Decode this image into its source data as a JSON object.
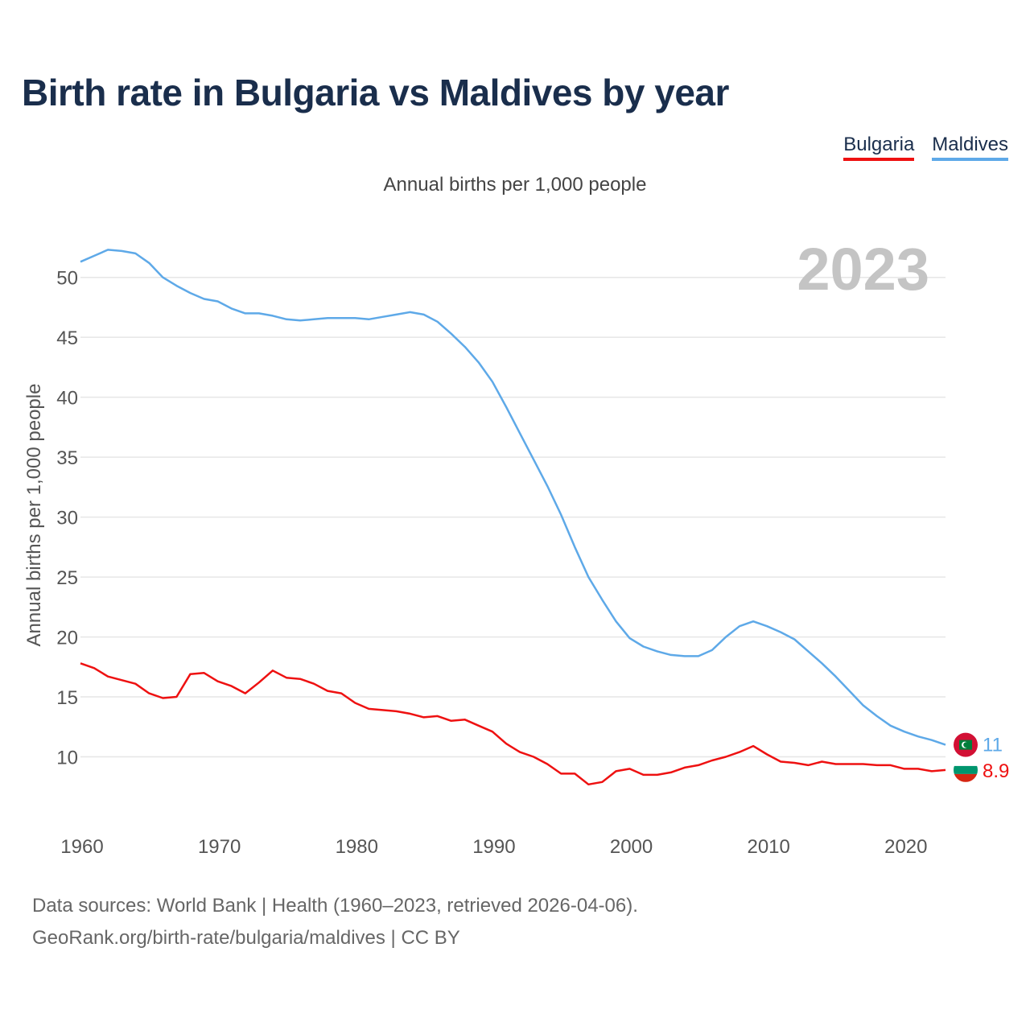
{
  "title": "Birth rate in Bulgaria vs Maldives by year",
  "subtitle": "Annual births per 1,000 people",
  "legend": {
    "bulgaria": "Bulgaria",
    "maldives": "Maldives"
  },
  "year_watermark": "2023",
  "footer": {
    "line1": "Data sources: World Bank | Health (1960–2023, retrieved 2026-04-06).",
    "line2": "GeoRank.org/birth-rate/bulgaria/maldives | CC BY"
  },
  "colors": {
    "bulgaria": "#ee1111",
    "maldives": "#5ea9e8",
    "grid": "#e6e6e6",
    "axis_text": "#555555"
  },
  "chart_data": {
    "type": "line",
    "title": "Birth rate in Bulgaria vs Maldives by year",
    "ylabel": "Annual births per 1,000 people",
    "xlabel": "",
    "xlim": [
      1960,
      2023
    ],
    "ylim": [
      5,
      53
    ],
    "x_ticks": [
      1960,
      1970,
      1980,
      1990,
      2000,
      2010,
      2020
    ],
    "y_ticks": [
      10,
      15,
      20,
      25,
      30,
      35,
      40,
      45,
      50
    ],
    "x": [
      1960,
      1961,
      1962,
      1963,
      1964,
      1965,
      1966,
      1967,
      1968,
      1969,
      1970,
      1971,
      1972,
      1973,
      1974,
      1975,
      1976,
      1977,
      1978,
      1979,
      1980,
      1981,
      1982,
      1983,
      1984,
      1985,
      1986,
      1987,
      1988,
      1989,
      1990,
      1991,
      1992,
      1993,
      1994,
      1995,
      1996,
      1997,
      1998,
      1999,
      2000,
      2001,
      2002,
      2003,
      2004,
      2005,
      2006,
      2007,
      2008,
      2009,
      2010,
      2011,
      2012,
      2013,
      2014,
      2015,
      2016,
      2017,
      2018,
      2019,
      2020,
      2021,
      2022,
      2023
    ],
    "series": [
      {
        "name": "Maldives",
        "end_label": "11",
        "values": [
          51.3,
          51.8,
          52.3,
          52.2,
          52.0,
          51.2,
          50.0,
          49.3,
          48.7,
          48.2,
          48.0,
          47.4,
          47.0,
          47.0,
          46.8,
          46.5,
          46.4,
          46.5,
          46.6,
          46.6,
          46.6,
          46.5,
          46.7,
          46.9,
          47.1,
          46.9,
          46.3,
          45.3,
          44.2,
          42.9,
          41.3,
          39.2,
          37.0,
          34.8,
          32.6,
          30.2,
          27.5,
          25.0,
          23.1,
          21.3,
          19.9,
          19.2,
          18.8,
          18.5,
          18.4,
          18.4,
          18.9,
          20.0,
          20.9,
          21.3,
          20.9,
          20.4,
          19.8,
          18.8,
          17.8,
          16.7,
          15.5,
          14.3,
          13.4,
          12.6,
          12.1,
          11.7,
          11.4,
          11.0
        ]
      },
      {
        "name": "Bulgaria",
        "end_label": "8.9",
        "values": [
          17.8,
          17.4,
          16.7,
          16.4,
          16.1,
          15.3,
          14.9,
          15.0,
          16.9,
          17.0,
          16.3,
          15.9,
          15.3,
          16.2,
          17.2,
          16.6,
          16.5,
          16.1,
          15.5,
          15.3,
          14.5,
          14.0,
          13.9,
          13.8,
          13.6,
          13.3,
          13.4,
          13.0,
          13.1,
          12.6,
          12.1,
          11.1,
          10.4,
          10.0,
          9.4,
          8.6,
          8.6,
          7.7,
          7.9,
          8.8,
          9.0,
          8.5,
          8.5,
          8.7,
          9.1,
          9.3,
          9.7,
          10.0,
          10.4,
          10.9,
          10.2,
          9.6,
          9.5,
          9.3,
          9.6,
          9.4,
          9.4,
          9.4,
          9.3,
          9.3,
          9.0,
          9.0,
          8.8,
          8.9
        ]
      }
    ]
  }
}
